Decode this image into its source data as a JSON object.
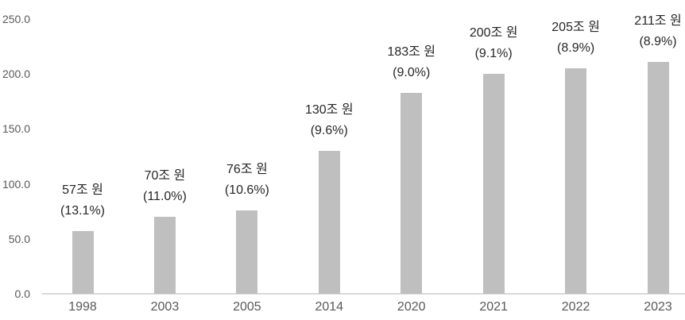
{
  "chart_data": {
    "type": "bar",
    "title": "",
    "xlabel": "",
    "ylabel": "",
    "categories": [
      "1998",
      "2003",
      "2005",
      "2014",
      "2020",
      "2021",
      "2022",
      "2023"
    ],
    "values": [
      57,
      70,
      76,
      130,
      183,
      200,
      205,
      211
    ],
    "data_labels": [
      {
        "line1": "57조 원",
        "line2": "(13.1%)"
      },
      {
        "line1": "70조 원",
        "line2": "(11.0%)"
      },
      {
        "line1": "76조 원",
        "line2": "(10.6%)"
      },
      {
        "line1": "130조 원",
        "line2": "(9.6%)"
      },
      {
        "line1": "183조 원",
        "line2": "(9.0%)"
      },
      {
        "line1": "200조 원",
        "line2": "(9.1%)"
      },
      {
        "line1": "205조 원",
        "line2": "(8.9%)"
      },
      {
        "line1": "211조 원",
        "line2": "(8.9%)"
      }
    ],
    "y_ticks": [
      "0.0",
      "50.0",
      "100.0",
      "150.0",
      "200.0",
      "250.0"
    ],
    "ylim": [
      0,
      250
    ],
    "grid": false,
    "legend": false,
    "colors": {
      "bar_fill": "#bfbfbf",
      "axis_line": "#d9d9d9",
      "tick_label": "#595959",
      "data_label": "#262626",
      "background": "#ffffff"
    }
  }
}
